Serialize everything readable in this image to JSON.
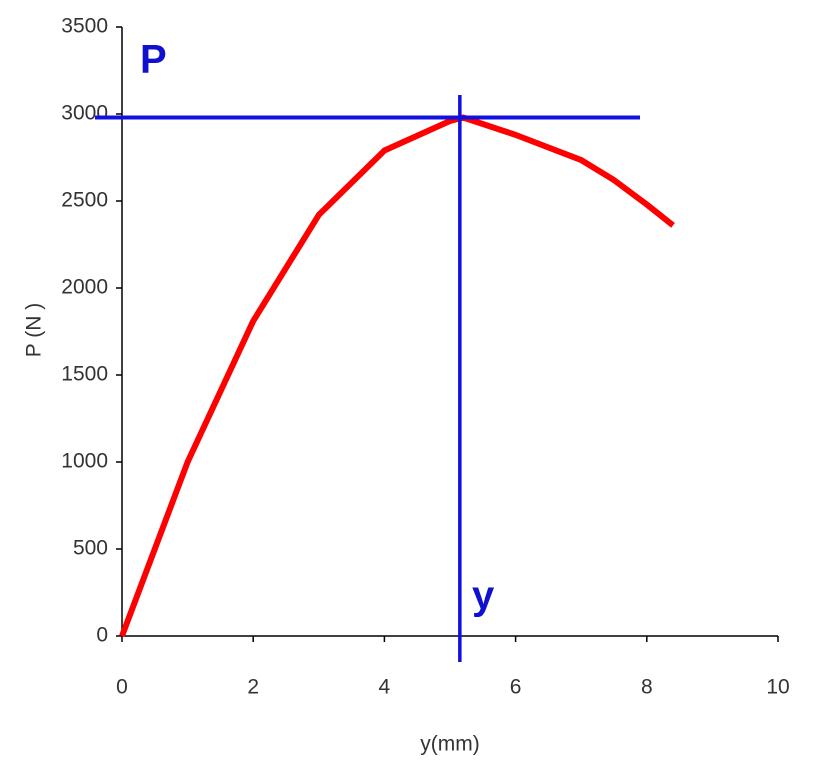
{
  "chart_data": {
    "type": "line",
    "x": [
      0,
      1,
      2,
      3,
      4,
      5,
      5.2,
      6,
      7,
      7.5,
      8,
      8.4
    ],
    "values": [
      0,
      1000,
      1810,
      2420,
      2790,
      2960,
      2980,
      2880,
      2735,
      2620,
      2480,
      2360
    ],
    "color": "#ff0000",
    "xlabel": "y(mm)",
    "ylabel": "P (N )",
    "xlim": [
      0,
      10
    ],
    "xticks": [
      0,
      2,
      4,
      6,
      8,
      10
    ],
    "ylim": [
      0,
      3500
    ],
    "yticks": [
      0,
      500,
      1000,
      1500,
      2000,
      2500,
      3000,
      3500
    ],
    "crosshair": {
      "x": 5.15,
      "y": 2980,
      "color": "#1010e0"
    },
    "annotations": [
      "P",
      "y"
    ]
  }
}
